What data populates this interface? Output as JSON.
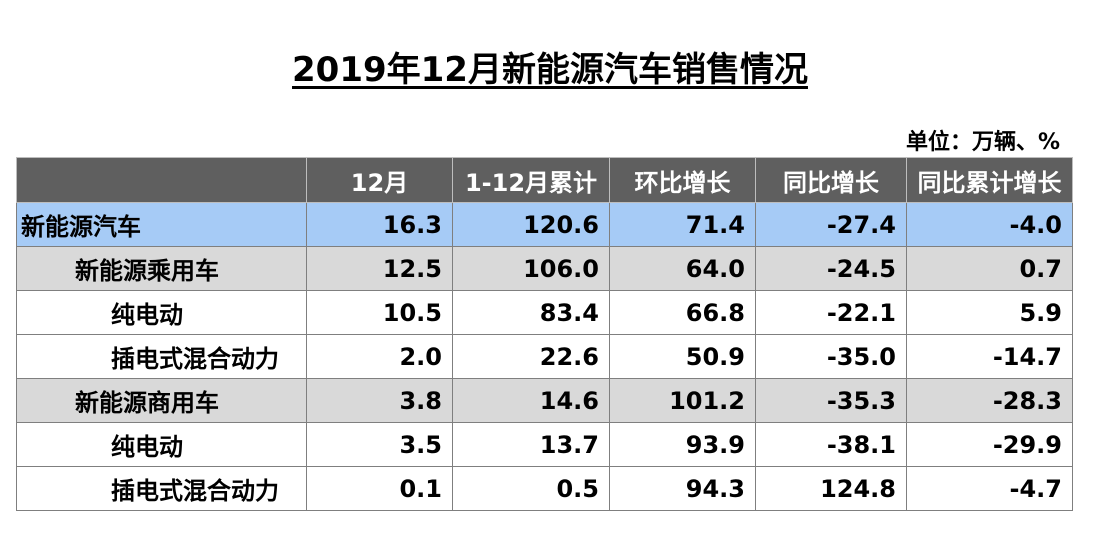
{
  "title": "2019年12月新能源汽车销售情况",
  "unit": "单位：万辆、%",
  "table": {
    "headers": [
      "",
      "12月",
      "1-12月累计",
      "环比增长",
      "同比增长",
      "同比累计增长"
    ],
    "rows": [
      {
        "label": "新能源汽车",
        "values": [
          "16.3",
          "120.6",
          "71.4",
          "-27.4",
          "-4.0"
        ]
      },
      {
        "label": "新能源乘用车",
        "values": [
          "12.5",
          "106.0",
          "64.0",
          "-24.5",
          "0.7"
        ]
      },
      {
        "label": "纯电动",
        "values": [
          "10.5",
          "83.4",
          "66.8",
          "-22.1",
          "5.9"
        ]
      },
      {
        "label": "插电式混合动力",
        "values": [
          "2.0",
          "22.6",
          "50.9",
          "-35.0",
          "-14.7"
        ]
      },
      {
        "label": "新能源商用车",
        "values": [
          "3.8",
          "14.6",
          "101.2",
          "-35.3",
          "-28.3"
        ]
      },
      {
        "label": "纯电动",
        "values": [
          "3.5",
          "13.7",
          "93.9",
          "-38.1",
          "-29.9"
        ]
      },
      {
        "label": "插电式混合动力",
        "values": [
          "0.1",
          "0.5",
          "94.3",
          "124.8",
          "-4.7"
        ]
      }
    ]
  },
  "colors": {
    "header_bg": "#5f5f5f",
    "total_row_bg": "#a6cbf6",
    "subtotal_row_bg": "#d9d9d9"
  }
}
